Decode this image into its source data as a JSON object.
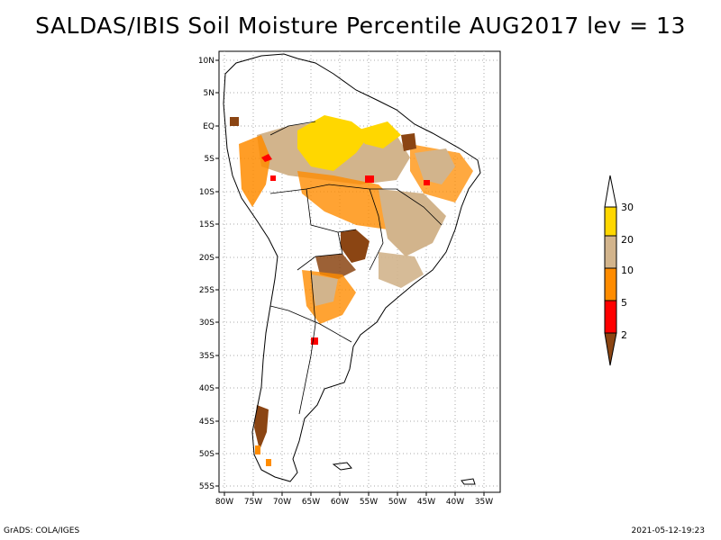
{
  "title": "SALDAS/IBIS Soil Moisture Percentile AUG2017 lev = 13",
  "footer": {
    "left": "GrADS: COLA/IGES",
    "right": "2021-05-12-19:23"
  },
  "axes": {
    "lat_labels": [
      "10N",
      "5N",
      "EQ",
      "5S",
      "10S",
      "15S",
      "20S",
      "25S",
      "30S",
      "35S",
      "40S",
      "45S",
      "50S",
      "55S"
    ],
    "lat_values": [
      10,
      5,
      0,
      -5,
      -10,
      -15,
      -20,
      -25,
      -30,
      -35,
      -40,
      -45,
      -50,
      -55
    ],
    "lon_labels": [
      "80W",
      "75W",
      "70W",
      "65W",
      "60W",
      "55W",
      "50W",
      "45W",
      "40W",
      "35W"
    ],
    "lon_values": [
      -80,
      -75,
      -70,
      -65,
      -60,
      -55,
      -50,
      -45,
      -40,
      -35
    ],
    "lon_range": [
      -81,
      -33
    ],
    "lat_range": [
      -56,
      12
    ]
  },
  "legend": {
    "labels": [
      "30",
      "20",
      "10",
      "5",
      "2"
    ],
    "colors": {
      "above30": "#ffffff",
      "c20_30": "#ffd700",
      "c10_20": "#d2b48c",
      "c5_10": "#ff8c00",
      "c2_5": "#ff0000",
      "below2": "#8b4513"
    }
  },
  "colors": {
    "land_outline": "#000000",
    "grid": "#999999"
  }
}
